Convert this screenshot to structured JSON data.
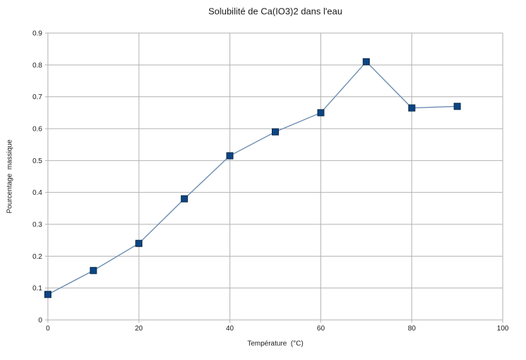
{
  "chart_data": {
    "type": "line",
    "title": "Solubilité de Ca(IO3)2 dans l'eau",
    "xlabel": "Température  (°C)",
    "ylabel": "Pourcentage  massique",
    "x": [
      0,
      10,
      20,
      30,
      40,
      50,
      60,
      70,
      80,
      90
    ],
    "y": [
      0.08,
      0.155,
      0.24,
      0.38,
      0.515,
      0.59,
      0.65,
      0.81,
      0.665,
      0.67
    ],
    "xlim": [
      0,
      100
    ],
    "ylim": [
      0,
      0.9
    ],
    "x_tick_values": [
      0,
      20,
      40,
      60,
      80,
      100
    ],
    "x_tick_labels": [
      "0",
      "20",
      "40",
      "60",
      "80",
      "100"
    ],
    "y_tick_values": [
      0,
      0.1,
      0.2,
      0.3,
      0.4,
      0.5,
      0.6,
      0.7,
      0.8,
      0.9
    ],
    "y_tick_labels": [
      "0",
      "0.1",
      "0.2",
      "0.3",
      "0.4",
      "0.5",
      "0.6",
      "0.7",
      "0.8",
      "0.9"
    ],
    "grid": "on",
    "legend": "none",
    "marker": "square",
    "colors": {
      "background": "#ffffff",
      "grid": "#b2b2b2",
      "axis": "#b2b2b2",
      "line": "#6b8cb0",
      "marker_fill": "#0d4584",
      "marker_stroke": "#0b2a4a",
      "text": "#1a1a1a"
    }
  }
}
